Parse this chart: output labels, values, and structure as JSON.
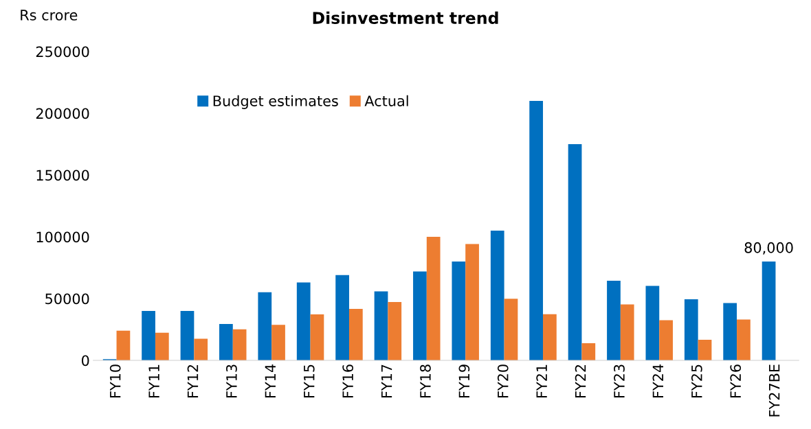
{
  "chart_data": {
    "type": "bar",
    "title": "Disinvestment trend",
    "ylabel": "Rs crore",
    "categories": [
      "FY10",
      "FY11",
      "FY12",
      "FY13",
      "FY14",
      "FY15",
      "FY16",
      "FY17",
      "FY18",
      "FY19",
      "FY20",
      "FY21",
      "FY22",
      "FY23",
      "FY24",
      "FY25",
      "FY26",
      "FY27BE"
    ],
    "series": [
      {
        "name": "Budget estimates",
        "color": "#0070c0",
        "values": [
          1000,
          40000,
          40000,
          29500,
          55100,
          63000,
          69000,
          55800,
          72000,
          80000,
          105000,
          210000,
          175000,
          64500,
          60300,
          49400,
          46400,
          80000
        ],
        "value_labels": [
          null,
          null,
          null,
          null,
          null,
          null,
          null,
          null,
          null,
          null,
          null,
          null,
          null,
          null,
          null,
          null,
          null,
          "80,000"
        ]
      },
      {
        "name": "Actual",
        "color": "#ed7d31",
        "values": [
          24000,
          22400,
          17500,
          25200,
          28800,
          37200,
          41700,
          47200,
          100000,
          94200,
          49800,
          37400,
          13900,
          45300,
          32500,
          16700,
          33100,
          null
        ]
      }
    ],
    "ylim": [
      0,
      250000
    ],
    "yticks": [
      0,
      50000,
      100000,
      150000,
      200000,
      250000
    ],
    "grid": false,
    "legend": "top left"
  }
}
